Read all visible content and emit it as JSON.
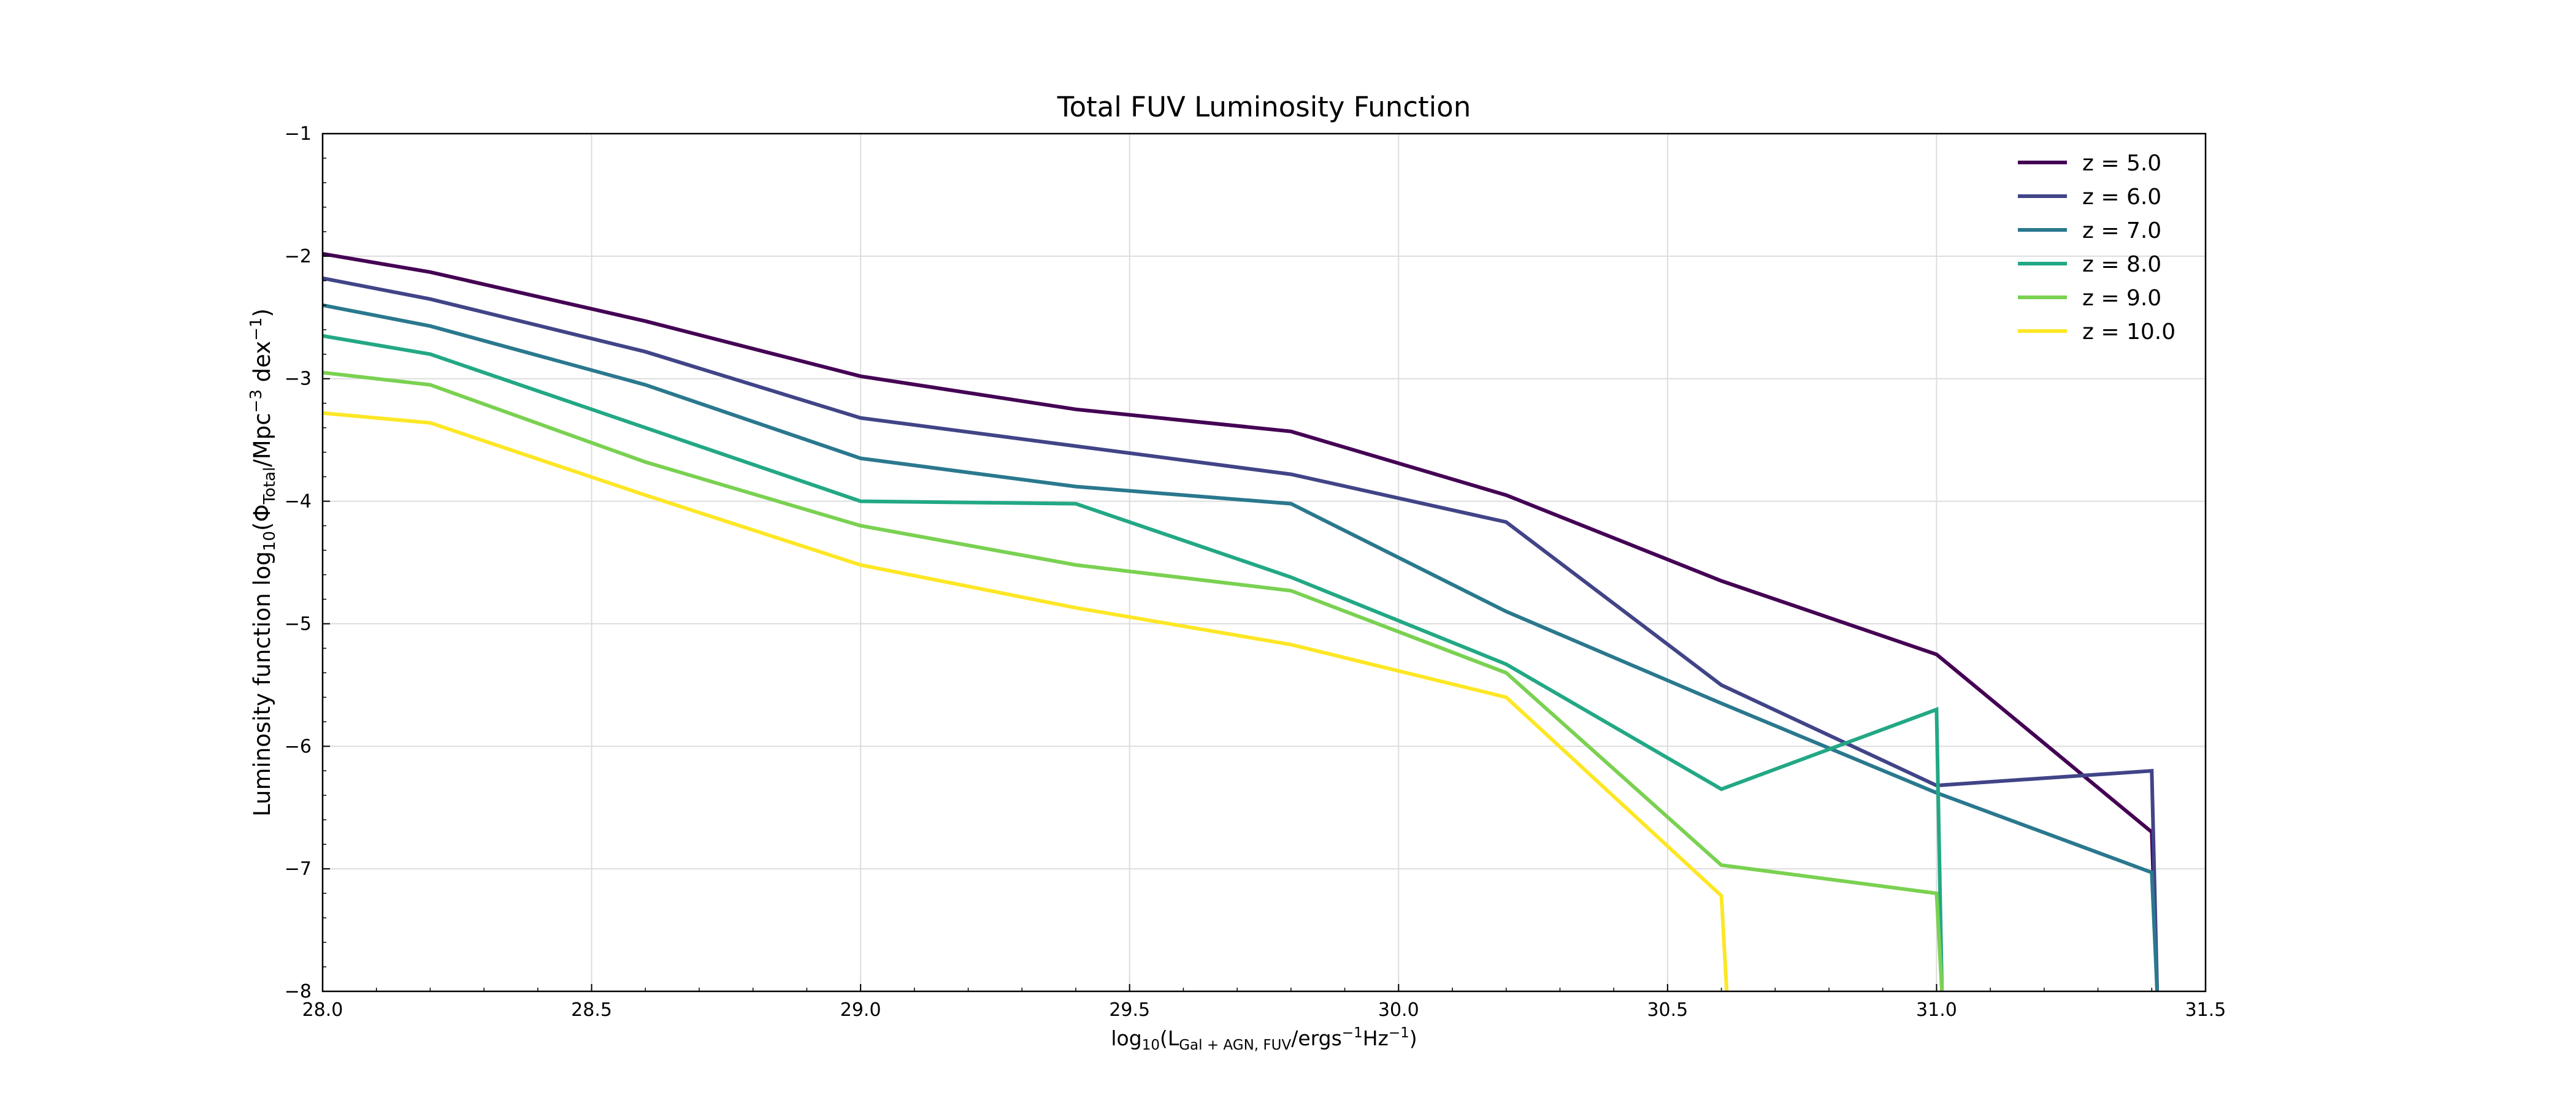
{
  "chart_data": {
    "type": "line",
    "title": "Total FUV Luminosity Function",
    "xlabel": {
      "prefix": "log",
      "prefix_sub": "10",
      "open": "(L",
      "sub": "Gal + AGN, FUV",
      "mid1": "/ergs",
      "sup1": "−1",
      "mid2": "Hz",
      "sup2": "−1",
      "close": ")"
    },
    "ylabel": {
      "prefix": "Luminosity function log",
      "prefix_sub": "10",
      "open": "(Φ",
      "sub": "Total",
      "mid1": "/Mpc",
      "sup1": "−3",
      "mid2": " dex",
      "sup2": "−1",
      "close": ")"
    },
    "xlim": [
      28.0,
      31.5
    ],
    "ylim": [
      -8,
      -1
    ],
    "xticks": [
      "28.0",
      "28.5",
      "29.0",
      "29.5",
      "30.0",
      "30.5",
      "31.0",
      "31.5"
    ],
    "yticks": [
      "−1",
      "−2",
      "−3",
      "−4",
      "−5",
      "−6",
      "−7",
      "−8"
    ],
    "grid": true,
    "legend_position": "top-right",
    "x": [
      28.0,
      28.2,
      28.6,
      29.0,
      29.4,
      29.8,
      30.2,
      30.6,
      31.0,
      31.4
    ],
    "series": [
      {
        "name": "z = 5.0",
        "color": "#440154",
        "points": [
          [
            28.0,
            -1.98
          ],
          [
            28.2,
            -2.13
          ],
          [
            28.6,
            -2.53
          ],
          [
            29.0,
            -2.98
          ],
          [
            29.4,
            -3.25
          ],
          [
            29.8,
            -3.43
          ],
          [
            30.2,
            -3.95
          ],
          [
            30.6,
            -4.65
          ],
          [
            31.0,
            -5.25
          ],
          [
            31.4,
            -6.7
          ],
          [
            31.41,
            -8.0
          ]
        ]
      },
      {
        "name": "z = 6.0",
        "color": "#414487",
        "points": [
          [
            28.0,
            -2.18
          ],
          [
            28.2,
            -2.35
          ],
          [
            28.6,
            -2.78
          ],
          [
            29.0,
            -3.32
          ],
          [
            29.4,
            -3.55
          ],
          [
            29.8,
            -3.78
          ],
          [
            30.2,
            -4.17
          ],
          [
            30.6,
            -5.5
          ],
          [
            31.0,
            -6.32
          ],
          [
            31.4,
            -6.2
          ],
          [
            31.41,
            -8.0
          ]
        ]
      },
      {
        "name": "z = 7.0",
        "color": "#2a788e",
        "points": [
          [
            28.0,
            -2.4
          ],
          [
            28.2,
            -2.57
          ],
          [
            28.6,
            -3.05
          ],
          [
            29.0,
            -3.65
          ],
          [
            29.4,
            -3.88
          ],
          [
            29.8,
            -4.02
          ],
          [
            30.2,
            -4.9
          ],
          [
            30.6,
            -5.65
          ],
          [
            31.0,
            -6.38
          ],
          [
            31.4,
            -7.03
          ],
          [
            31.41,
            -8.0
          ]
        ]
      },
      {
        "name": "z = 8.0",
        "color": "#22a884",
        "points": [
          [
            28.0,
            -2.65
          ],
          [
            28.2,
            -2.8
          ],
          [
            28.6,
            -3.4
          ],
          [
            29.0,
            -4.0
          ],
          [
            29.4,
            -4.02
          ],
          [
            29.8,
            -4.62
          ],
          [
            30.2,
            -5.33
          ],
          [
            30.6,
            -6.35
          ],
          [
            31.0,
            -5.7
          ],
          [
            31.01,
            -8.0
          ]
        ]
      },
      {
        "name": "z = 9.0",
        "color": "#7ad151",
        "points": [
          [
            28.0,
            -2.95
          ],
          [
            28.2,
            -3.05
          ],
          [
            28.6,
            -3.68
          ],
          [
            29.0,
            -4.2
          ],
          [
            29.4,
            -4.52
          ],
          [
            29.8,
            -4.73
          ],
          [
            30.2,
            -5.4
          ],
          [
            30.6,
            -6.97
          ],
          [
            31.0,
            -7.2
          ],
          [
            31.01,
            -8.0
          ]
        ]
      },
      {
        "name": "z = 10.0",
        "color": "#fde725",
        "points": [
          [
            28.0,
            -3.28
          ],
          [
            28.2,
            -3.36
          ],
          [
            28.6,
            -3.95
          ],
          [
            29.0,
            -4.52
          ],
          [
            29.4,
            -4.87
          ],
          [
            29.8,
            -5.17
          ],
          [
            30.2,
            -5.6
          ],
          [
            30.6,
            -7.22
          ],
          [
            30.61,
            -8.0
          ]
        ]
      }
    ]
  }
}
